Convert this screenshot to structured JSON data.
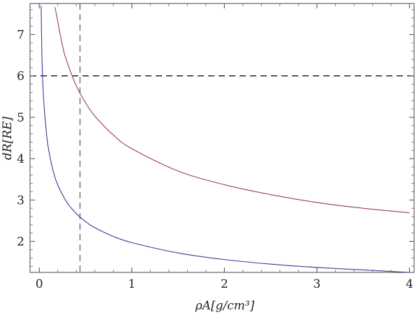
{
  "chart_data": {
    "type": "line",
    "xlabel": "ρA[g/cm³]",
    "ylabel": "dR[RE]",
    "xlim": [
      -0.1,
      4.05
    ],
    "ylim": [
      1.25,
      7.75
    ],
    "x_ticks": [
      0,
      1,
      2,
      3,
      4
    ],
    "y_ticks": [
      2,
      3,
      4,
      5,
      6,
      7
    ],
    "x_tick_labels": [
      "0",
      "1",
      "2",
      "3",
      "4"
    ],
    "y_tick_labels": [
      "2",
      "3",
      "4",
      "5",
      "6",
      "7"
    ],
    "grid": false,
    "legend": "none",
    "series": [
      {
        "color": "#9b3a6b",
        "x": [
          0.17,
          0.25,
          0.3,
          0.4,
          0.5,
          0.6,
          0.8,
          1.0,
          1.5,
          2.0,
          2.5,
          3.0,
          3.5,
          4.0
        ],
        "y": [
          7.66,
          6.74,
          6.34,
          5.76,
          5.35,
          5.03,
          4.57,
          4.24,
          3.7,
          3.37,
          3.13,
          2.94,
          2.8,
          2.69
        ]
      },
      {
        "color": "#3a3a9b",
        "x": [
          0.02,
          0.03,
          0.05,
          0.08,
          0.1,
          0.15,
          0.2,
          0.3,
          0.4,
          0.5,
          0.6,
          0.8,
          1.0,
          1.5,
          2.0,
          2.5,
          3.0,
          3.5,
          4.0
        ],
        "y": [
          7.7,
          6.32,
          5.33,
          4.56,
          4.23,
          3.7,
          3.36,
          2.94,
          2.67,
          2.48,
          2.33,
          2.12,
          1.97,
          1.72,
          1.56,
          1.45,
          1.37,
          1.31,
          1.25
        ]
      }
    ],
    "reference_lines": [
      {
        "orientation": "horizontal",
        "value": 6.0,
        "style": "dashed",
        "color": "#000000"
      },
      {
        "orientation": "vertical",
        "value": 0.44,
        "style": "dashed",
        "color": "#555555"
      }
    ]
  }
}
